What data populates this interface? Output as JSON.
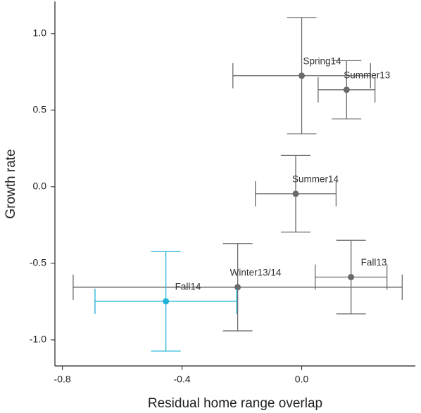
{
  "chart_data": {
    "type": "scatter",
    "xlabel": "Residual home range overlap",
    "ylabel": "Growth rate",
    "xlim": [
      -0.825,
      0.38
    ],
    "ylim": [
      -1.17,
      1.21
    ],
    "xticks": [
      -0.8,
      -0.4,
      {
        "value": 0,
        "label": "0.0"
      }
    ],
    "yticks": [
      {
        "value": 1,
        "label": "1.0"
      },
      0.5,
      {
        "value": 0,
        "label": "0.0"
      },
      -0.5,
      {
        "value": -1,
        "label": "-1.0"
      }
    ],
    "points": [
      {
        "label": "Spring14",
        "x": 0.0,
        "y": 0.725,
        "xerr": 0.23,
        "yerr": 0.38,
        "color": "#6a6a6a"
      },
      {
        "label": "Summer13",
        "x": 0.15,
        "y": 0.633,
        "xerr": 0.095,
        "yerr": 0.19,
        "color": "#6a6a6a"
      },
      {
        "label": "Summer14",
        "x": -0.02,
        "y": -0.046,
        "xerr": 0.135,
        "yerr": 0.25,
        "color": "#6a6a6a"
      },
      {
        "label": "Fall13",
        "x": 0.165,
        "y": -0.59,
        "xerr": 0.12,
        "yerr": 0.24,
        "color": "#6a6a6a"
      },
      {
        "label": "Winter13/14",
        "x": -0.214,
        "y": -0.656,
        "xerr": 0.55,
        "yerr": 0.285,
        "color": "#6a6a6a"
      },
      {
        "label": "Fall14",
        "x": -0.454,
        "y": -0.748,
        "xerr": 0.237,
        "yerr": 0.325,
        "color": "#1fb3d8"
      }
    ]
  }
}
